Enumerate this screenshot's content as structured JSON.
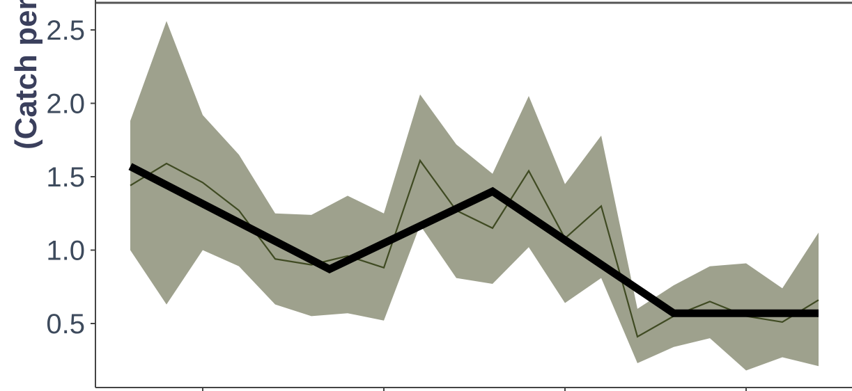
{
  "chart_data": {
    "type": "line",
    "title": "",
    "xlabel": "",
    "ylabel": "(Catch per",
    "ylim": [
      0.2,
      2.7
    ],
    "y_ticks": [
      "0.5",
      "1.0",
      "1.5",
      "2.0",
      "2.5"
    ],
    "x": [
      1,
      2,
      3,
      4,
      5,
      6,
      7,
      8,
      9,
      10,
      11,
      12,
      13,
      14,
      15,
      16,
      17,
      18,
      19,
      20
    ],
    "series": [
      {
        "style": "ribbon",
        "upper": [
          1.88,
          2.56,
          1.92,
          1.65,
          1.25,
          1.24,
          1.37,
          1.25,
          2.06,
          1.72,
          1.52,
          2.05,
          1.45,
          1.78,
          0.6,
          0.76,
          0.89,
          0.91,
          0.74,
          1.12
        ],
        "lower": [
          1.0,
          0.63,
          1.0,
          0.89,
          0.63,
          0.55,
          0.57,
          0.52,
          1.17,
          0.81,
          0.77,
          1.02,
          0.64,
          0.81,
          0.23,
          0.34,
          0.4,
          0.18,
          0.27,
          0.21
        ],
        "color": "#9ea18d"
      },
      {
        "style": "line",
        "values": [
          1.44,
          1.59,
          1.46,
          1.27,
          0.94,
          0.9,
          0.96,
          0.88,
          1.61,
          1.27,
          1.15,
          1.54,
          1.08,
          1.3,
          0.41,
          0.55,
          0.65,
          0.55,
          0.51,
          0.66
        ],
        "color": "#3f4a22"
      },
      {
        "style": "trend",
        "points": [
          [
            1,
            1.57
          ],
          [
            6.5,
            0.87
          ],
          [
            11,
            1.4
          ],
          [
            16,
            0.57
          ],
          [
            20,
            0.57
          ]
        ],
        "color": "#000000"
      }
    ],
    "grid": false,
    "colors": {
      "axis": "#444444",
      "frame_top": "#555555",
      "tick_text": "#3d4a5c",
      "title_text": "#3a3f5c"
    }
  }
}
